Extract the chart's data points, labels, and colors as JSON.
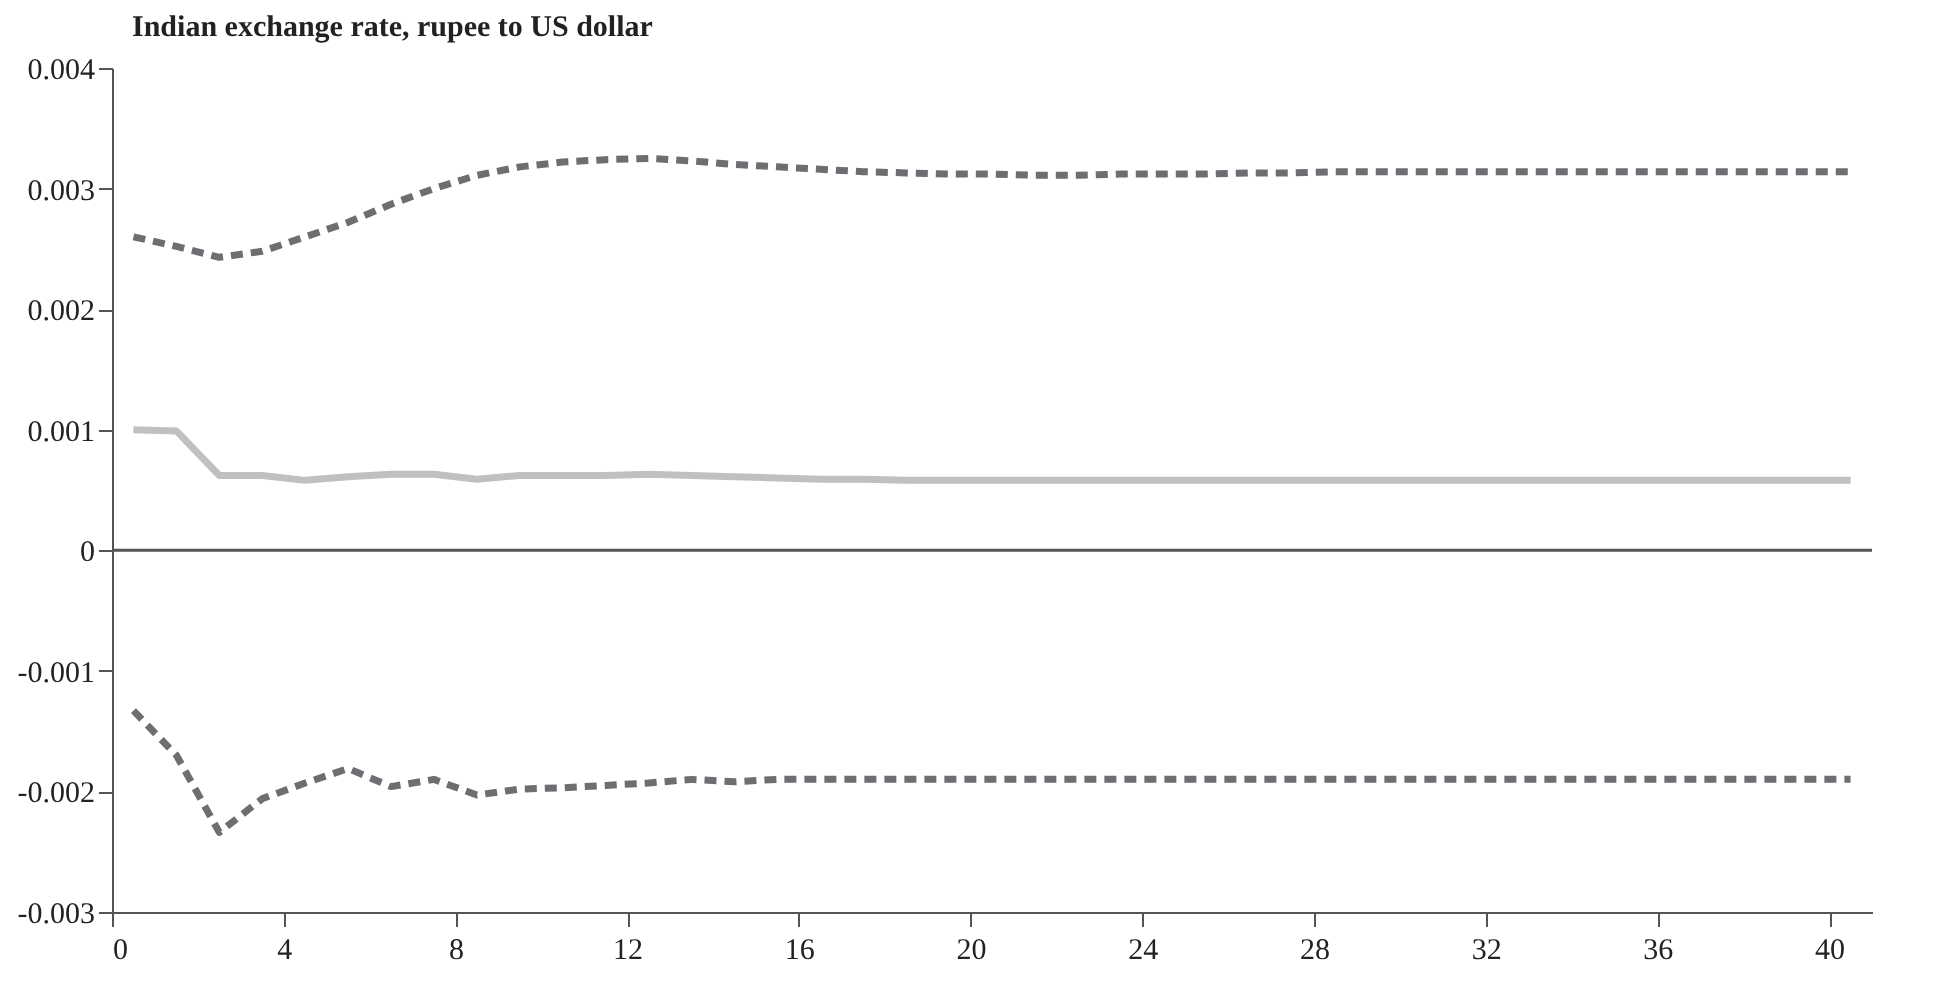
{
  "chart_data": {
    "type": "line",
    "title": "Indian exchange rate, rupee to US dollar",
    "x": [
      0.5,
      1.5,
      2.5,
      3.5,
      4.5,
      5.5,
      6.5,
      7.5,
      8.5,
      9.5,
      10.5,
      11.5,
      12.5,
      13.5,
      14.5,
      15.5,
      16.5,
      17.5,
      18.5,
      19.5,
      20.5,
      21.5,
      22.5,
      23.5,
      24.5,
      25.5,
      26.5,
      27.5,
      28.5,
      29.5,
      30.5,
      31.5,
      32.5,
      33.5,
      34.5,
      35.5,
      36.5,
      37.5,
      38.5,
      39.5,
      40.5
    ],
    "series": [
      {
        "color": "#6d6e71",
        "line_style": "dashed",
        "values": [
          0.0026,
          0.00252,
          0.00243,
          0.00248,
          0.0026,
          0.00272,
          0.00287,
          0.003,
          0.00311,
          0.00318,
          0.00322,
          0.00324,
          0.00325,
          0.00323,
          0.0032,
          0.00318,
          0.00316,
          0.00314,
          0.00313,
          0.00312,
          0.00312,
          0.00311,
          0.00311,
          0.00312,
          0.00312,
          0.00312,
          0.00313,
          0.00313,
          0.00314,
          0.00314,
          0.00314,
          0.00314,
          0.00314,
          0.00314,
          0.00314,
          0.00314,
          0.00314,
          0.00314,
          0.00314,
          0.00314,
          0.00314
        ]
      },
      {
        "color": "#c0c0c2",
        "line_style": "solid",
        "values": [
          0.001,
          0.00099,
          0.00062,
          0.00062,
          0.00058,
          0.00061,
          0.00063,
          0.00063,
          0.00059,
          0.00062,
          0.00062,
          0.00062,
          0.00063,
          0.00062,
          0.00061,
          0.0006,
          0.00059,
          0.00059,
          0.00058,
          0.00058,
          0.00058,
          0.00058,
          0.00058,
          0.00058,
          0.00058,
          0.00058,
          0.00058,
          0.00058,
          0.00058,
          0.00058,
          0.00058,
          0.00058,
          0.00058,
          0.00058,
          0.00058,
          0.00058,
          0.00058,
          0.00058,
          0.00058,
          0.00058,
          0.00058
        ]
      },
      {
        "color": "#6d6e71",
        "line_style": "dashed",
        "values": [
          -0.00133,
          -0.0017,
          -0.00234,
          -0.00206,
          -0.00193,
          -0.00181,
          -0.00196,
          -0.0019,
          -0.00203,
          -0.00198,
          -0.00197,
          -0.00195,
          -0.00193,
          -0.0019,
          -0.00192,
          -0.0019,
          -0.0019,
          -0.0019,
          -0.0019,
          -0.0019,
          -0.0019,
          -0.0019,
          -0.0019,
          -0.0019,
          -0.0019,
          -0.0019,
          -0.0019,
          -0.0019,
          -0.0019,
          -0.0019,
          -0.0019,
          -0.0019,
          -0.0019,
          -0.0019,
          -0.0019,
          -0.0019,
          -0.0019,
          -0.0019,
          -0.0019,
          -0.0019,
          -0.0019
        ]
      }
    ],
    "xlim": [
      0,
      41
    ],
    "xticks": [
      0,
      4,
      8,
      12,
      16,
      20,
      24,
      28,
      32,
      36,
      40
    ],
    "ylim": [
      -0.003,
      0.004
    ],
    "yticks": [
      -0.003,
      -0.002,
      -0.001,
      0,
      0.001,
      0.002,
      0.003,
      0.004
    ],
    "ref_lines": [
      {
        "axis": "y",
        "value": 0,
        "color": "#555555"
      }
    ],
    "grid": false
  }
}
